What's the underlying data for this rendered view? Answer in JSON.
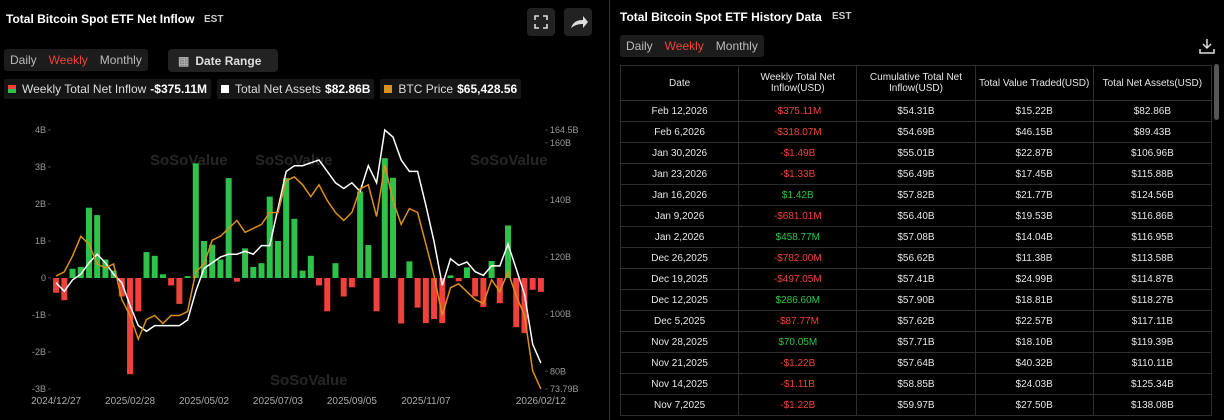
{
  "header": {
    "title": "Total Bitcoin Spot ETF Net Inflow",
    "timezone": "EST",
    "tabs": [
      "Daily",
      "Weekly",
      "Monthly"
    ],
    "active_tab": 1,
    "date_range": "Date Range"
  },
  "watermark": "SoSoValue",
  "chart_data": {
    "type": "combo",
    "categories": [
      "2024/12/27",
      null,
      null,
      null,
      null,
      null,
      null,
      null,
      null,
      "2025/02/28",
      null,
      null,
      null,
      null,
      null,
      null,
      null,
      null,
      "2025/05/02",
      null,
      null,
      null,
      null,
      null,
      null,
      null,
      null,
      "2025/07/03",
      null,
      null,
      null,
      null,
      null,
      null,
      null,
      null,
      "2025/09/05",
      null,
      null,
      null,
      null,
      null,
      null,
      null,
      null,
      "2025/11/07",
      null,
      null,
      null,
      null,
      null,
      null,
      null,
      null,
      null,
      null,
      null,
      null,
      null,
      "2026/02/12"
    ],
    "ylim": [
      -3,
      4
    ],
    "yticks": [
      {
        "value": 4,
        "label": "4B"
      },
      {
        "value": 3,
        "label": "3B"
      },
      {
        "value": 2,
        "label": "2B"
      },
      {
        "value": 1,
        "label": "1B"
      },
      0,
      {
        "value": -1,
        "label": "-1B"
      },
      {
        "value": -2,
        "label": "-2B"
      },
      {
        "value": -3,
        "label": "-3B"
      }
    ],
    "y2lim": [
      73.79,
      164.5
    ],
    "y2ticks": [
      {
        "value": 164.5,
        "label": "164.5B"
      },
      {
        "value": 160,
        "label": "160B"
      },
      {
        "value": 140,
        "label": "140B"
      },
      {
        "value": 120,
        "label": "120B"
      },
      {
        "value": 100,
        "label": "100B"
      },
      {
        "value": 80,
        "label": "80B"
      },
      {
        "value": 73.79,
        "label": "73.79B"
      }
    ],
    "grid": false,
    "series": [
      {
        "name": "Weekly Total Net Inflow",
        "summary": "-$375.11M",
        "type": "bar",
        "color": "#2fc24b",
        "negative_color": "#f0413c",
        "values": [
          -0.4,
          -0.6,
          0.25,
          0.3,
          1.9,
          1.7,
          0.5,
          0.2,
          -0.5,
          -2.6,
          -0.9,
          0.7,
          0.6,
          0.1,
          -0.2,
          -0.7,
          0.05,
          3.1,
          1.0,
          0.9,
          0.5,
          2.7,
          -0.1,
          0.8,
          0.3,
          0.4,
          2.2,
          1.0,
          2.7,
          1.6,
          0.2,
          0.6,
          -0.2,
          -0.9,
          0.4,
          -0.5,
          -0.25,
          2.34,
          0.89,
          -0.9,
          3.24,
          2.71,
          -1.23,
          0.45,
          -0.8,
          -1.22,
          -1.11,
          -1.22,
          0.07,
          -0.088,
          0.287,
          -0.497,
          -0.782,
          0.459,
          -0.681,
          1.42,
          -1.33,
          -1.49,
          -0.318,
          -0.375
        ]
      },
      {
        "name": "Total Net Assets",
        "summary": "$82.86B",
        "type": "line",
        "axis": "y2",
        "color": "#ffffff",
        "values": [
          111,
          108,
          112,
          114,
          118,
          121,
          118,
          114,
          111,
          103,
          96,
          94,
          96,
          96,
          96,
          96,
          98,
          108,
          116,
          118,
          120,
          121,
          121,
          122,
          121,
          124,
          124,
          137,
          150,
          152,
          152,
          153,
          154,
          150,
          146,
          144,
          146,
          143,
          152,
          146,
          164.5,
          162,
          154,
          150,
          150,
          138.08,
          125.34,
          110.11,
          119.39,
          117.11,
          118.27,
          114.87,
          113.58,
          116.95,
          116.86,
          124.56,
          115.88,
          106.96,
          89.43,
          82.86
        ]
      },
      {
        "name": "BTC Price",
        "summary": "$65,428.56",
        "type": "line",
        "color": "#d9901c",
        "values": [
          94000,
          95000,
          99000,
          104000,
          102000,
          97000,
          96000,
          97000,
          88000,
          84000,
          78000,
          83000,
          84000,
          82000,
          84000,
          84000,
          85000,
          95000,
          97000,
          103000,
          104000,
          106000,
          108000,
          105000,
          106000,
          107000,
          110000,
          110000,
          118000,
          119000,
          117000,
          114000,
          117000,
          113000,
          110000,
          108000,
          110000,
          116000,
          117000,
          109000,
          122000,
          113000,
          107000,
          111000,
          110000,
          102000,
          94000,
          84000,
          91000,
          92000,
          90000,
          88000,
          87000,
          93000,
          90000,
          95000,
          89000,
          84000,
          70000,
          65428.56
        ]
      }
    ]
  },
  "history": {
    "title": "Total Bitcoin Spot ETF History Data",
    "timezone": "EST",
    "tabs": [
      "Daily",
      "Weekly",
      "Monthly"
    ],
    "active_tab": 1,
    "table": {
      "columns": [
        "Date",
        "Weekly Total Net Inflow(USD)",
        "Cumulative Total Net Inflow(USD)",
        "Total Value Traded(USD)",
        "Total Net Assets(USD)"
      ],
      "rows": [
        [
          "Feb 12,2026",
          "-$375.11M",
          "$54.31B",
          "$15.22B",
          "$82.86B"
        ],
        [
          "Feb 6,2026",
          "-$318.07M",
          "$54.69B",
          "$46.15B",
          "$89.43B"
        ],
        [
          "Jan 30,2026",
          "-$1.49B",
          "$55.01B",
          "$22.87B",
          "$106.96B"
        ],
        [
          "Jan 23,2026",
          "-$1.33B",
          "$56.49B",
          "$17.45B",
          "$115.88B"
        ],
        [
          "Jan 16,2026",
          "$1.42B",
          "$57.82B",
          "$21.77B",
          "$124.56B"
        ],
        [
          "Jan 9,2026",
          "-$681.01M",
          "$56.40B",
          "$19.53B",
          "$116.86B"
        ],
        [
          "Jan 2,2026",
          "$458.77M",
          "$57.08B",
          "$14.04B",
          "$116.95B"
        ],
        [
          "Dec 26,2025",
          "-$782.00M",
          "$56.62B",
          "$11.38B",
          "$113.58B"
        ],
        [
          "Dec 19,2025",
          "-$497.05M",
          "$57.41B",
          "$24.99B",
          "$114.87B"
        ],
        [
          "Dec 12,2025",
          "$286.60M",
          "$57.90B",
          "$18.81B",
          "$118.27B"
        ],
        [
          "Dec 5,2025",
          "-$87.77M",
          "$57.62B",
          "$22.57B",
          "$117.11B"
        ],
        [
          "Nov 28,2025",
          "$70.05M",
          "$57.71B",
          "$18.10B",
          "$119.39B"
        ],
        [
          "Nov 21,2025",
          "-$1.22B",
          "$57.64B",
          "$40.32B",
          "$110.11B"
        ],
        [
          "Nov 14,2025",
          "-$1.11B",
          "$58.85B",
          "$24.03B",
          "$125.34B"
        ],
        [
          "Nov 7,2025",
          "-$1.22B",
          "$59.97B",
          "$27.50B",
          "$138.08B"
        ]
      ]
    }
  }
}
